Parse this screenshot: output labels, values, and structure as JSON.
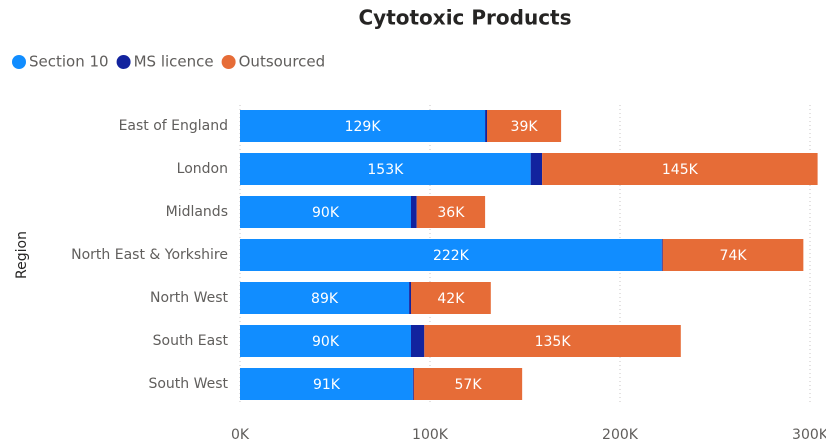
{
  "chart_data": {
    "type": "stacked_bar_horizontal",
    "title": "Cytotoxic Products",
    "y_axis_label": "Region",
    "categories": [
      "East of England",
      "London",
      "Midlands",
      "North East & Yorkshire",
      "North West",
      "South East",
      "South West"
    ],
    "series": [
      {
        "name": "Section 10",
        "color": "#118dff",
        "values": [
          129000,
          153000,
          90000,
          222000,
          89000,
          90000,
          91000
        ],
        "value_labels": [
          "129K",
          "153K",
          "90K",
          "222K",
          "89K",
          "90K",
          "91K"
        ]
      },
      {
        "name": "MS licence",
        "color": "#12239e",
        "values": [
          1000,
          6000,
          3000,
          500,
          1000,
          7000,
          500
        ]
      },
      {
        "name": "Outsourced",
        "color": "#e66c37",
        "values": [
          39000,
          145000,
          36000,
          74000,
          42000,
          135000,
          57000
        ],
        "value_labels": [
          "39K",
          "145K",
          "36K",
          "74K",
          "42K",
          "135K",
          "57K"
        ]
      }
    ],
    "xlim": [
      0,
      305000
    ],
    "xticks": [
      {
        "value": 0,
        "label": "0K"
      },
      {
        "value": 100000,
        "label": "100K"
      },
      {
        "value": 200000,
        "label": "200K"
      },
      {
        "value": 300000,
        "label": "300K"
      }
    ],
    "grid": true,
    "legend": "top-left"
  }
}
